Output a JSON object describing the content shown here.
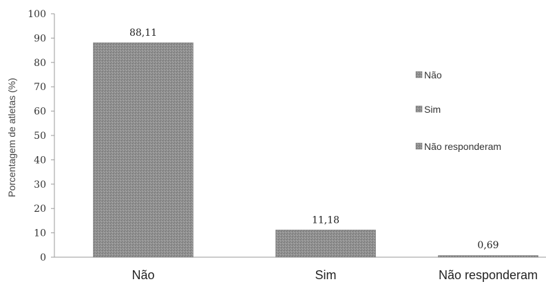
{
  "chart_data": {
    "type": "bar",
    "categories": [
      "Não",
      "Sim",
      "Não responderam"
    ],
    "values": [
      88.11,
      11.18,
      0.69
    ],
    "data_labels": [
      "88,11",
      "11,18",
      "0,69"
    ],
    "ylabel": "Porcentagem de atletas (%)",
    "xlabel": "",
    "ylim": [
      0,
      100
    ],
    "yticks": [
      0,
      10,
      20,
      30,
      40,
      50,
      60,
      70,
      80,
      90,
      100
    ],
    "legend": {
      "placement": "right",
      "entries": [
        "Não",
        "Sim",
        "Não responderam"
      ]
    },
    "grid": false,
    "colors": {
      "bar": "#8e8e8e",
      "axis": "#9a9a9a",
      "legend_swatch": "#8a8a8a"
    }
  }
}
